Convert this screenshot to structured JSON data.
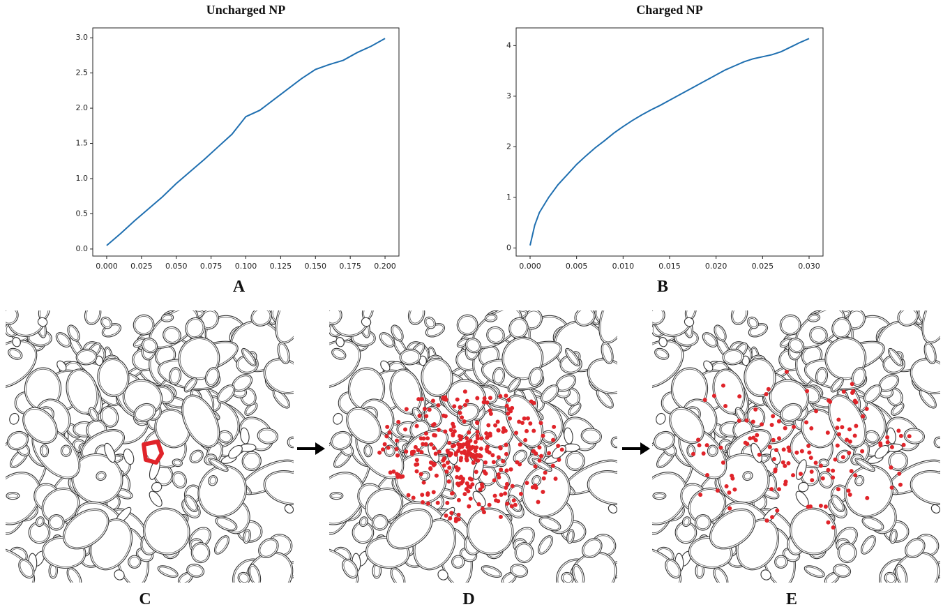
{
  "chart_data": [
    {
      "type": "line",
      "title": "Uncharged NP",
      "panel_label": "A",
      "x": [
        0,
        0.01,
        0.02,
        0.03,
        0.04,
        0.05,
        0.06,
        0.07,
        0.08,
        0.09,
        0.1,
        0.11,
        0.12,
        0.13,
        0.14,
        0.15,
        0.16,
        0.17,
        0.18,
        0.19,
        0.2
      ],
      "series": [
        {
          "color": "#1f6fb0",
          "values": [
            0.05,
            0.22,
            0.4,
            0.57,
            0.74,
            0.93,
            1.1,
            1.27,
            1.45,
            1.63,
            1.88,
            1.97,
            2.12,
            2.27,
            2.42,
            2.55,
            2.62,
            2.68,
            2.79,
            2.88,
            2.99
          ]
        }
      ],
      "xlim": [
        -0.01,
        0.21
      ],
      "ylim": [
        -0.1,
        3.14
      ],
      "xticks": [
        {
          "value": 0,
          "label": "0.000"
        },
        0.025,
        {
          "value": 0.05,
          "label": "0.050"
        },
        0.075,
        {
          "value": 0.1,
          "label": "0.100"
        },
        0.125,
        {
          "value": 0.15,
          "label": "0.150"
        },
        0.175,
        {
          "value": 0.2,
          "label": "0.200"
        }
      ],
      "yticks": [
        {
          "value": 0,
          "label": "0.0"
        },
        0.5,
        {
          "value": 1,
          "label": "1.0"
        },
        1.5,
        {
          "value": 2,
          "label": "2.0"
        },
        2.5,
        {
          "value": 3,
          "label": "3.0"
        }
      ]
    },
    {
      "type": "line",
      "title": "Charged NP",
      "panel_label": "B",
      "x": [
        0,
        0.0005,
        0.001,
        0.002,
        0.003,
        0.004,
        0.005,
        0.006,
        0.007,
        0.008,
        0.009,
        0.01,
        0.011,
        0.012,
        0.013,
        0.014,
        0.015,
        0.016,
        0.017,
        0.018,
        0.019,
        0.02,
        0.021,
        0.022,
        0.023,
        0.024,
        0.025,
        0.026,
        0.027,
        0.028,
        0.029,
        0.03
      ],
      "series": [
        {
          "color": "#1f6fb0",
          "values": [
            0.05,
            0.45,
            0.7,
            1.0,
            1.25,
            1.45,
            1.65,
            1.82,
            1.98,
            2.12,
            2.27,
            2.4,
            2.52,
            2.63,
            2.73,
            2.82,
            2.92,
            3.02,
            3.12,
            3.22,
            3.32,
            3.42,
            3.52,
            3.6,
            3.68,
            3.74,
            3.78,
            3.82,
            3.88,
            3.97,
            4.06,
            4.14
          ]
        }
      ],
      "xlim": [
        -0.0015,
        0.0315
      ],
      "ylim": [
        -0.16,
        4.35
      ],
      "xticks": [
        {
          "value": 0,
          "label": "0.000"
        },
        0.005,
        {
          "value": 0.01,
          "label": "0.010"
        },
        0.015,
        {
          "value": 0.02,
          "label": "0.020"
        },
        0.025,
        {
          "value": 0.03,
          "label": "0.030"
        }
      ],
      "yticks": [
        0,
        1,
        2,
        3,
        4
      ]
    }
  ],
  "figure_panels": [
    "C",
    "D",
    "E"
  ]
}
